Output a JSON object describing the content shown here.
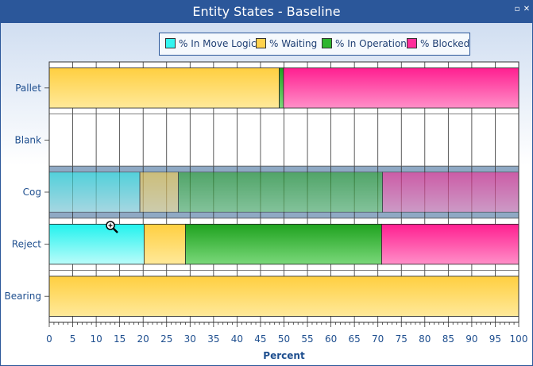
{
  "window": {
    "title": "Entity States - Baseline",
    "restore_glyph": "▫",
    "close_glyph": "✕"
  },
  "colors": {
    "axis_text": "#1f4f8f",
    "grid": "#333333",
    "highlight_row": "#8fa9c4"
  },
  "chart_data": {
    "type": "bar",
    "orientation": "horizontal",
    "stacked": true,
    "title": "",
    "xlabel": "Percent",
    "ylabel": "",
    "xlim": [
      0,
      100
    ],
    "x_ticks": [
      0,
      5,
      10,
      15,
      20,
      25,
      30,
      35,
      40,
      45,
      50,
      55,
      60,
      65,
      70,
      75,
      80,
      85,
      90,
      95,
      100
    ],
    "grid": true,
    "legend_position": "top-center",
    "categories": [
      "Pallet",
      "Blank",
      "Cog",
      "Reject",
      "Bearing"
    ],
    "highlighted_category": "Cog",
    "series": [
      {
        "name": "% In Move Logic",
        "color": "#33f5f0",
        "values": [
          0,
          0,
          19.3,
          20.2,
          0
        ]
      },
      {
        "name": "% Waiting",
        "color": "#ffd24d",
        "values": [
          49.0,
          0,
          8.2,
          8.8,
          100
        ]
      },
      {
        "name": "% In Operation",
        "color": "#2db52d",
        "values": [
          0.9,
          0,
          43.5,
          41.8,
          0
        ]
      },
      {
        "name": "% Blocked",
        "color": "#ff2e9a",
        "values": [
          50.1,
          0,
          29.0,
          29.2,
          0
        ]
      }
    ]
  }
}
